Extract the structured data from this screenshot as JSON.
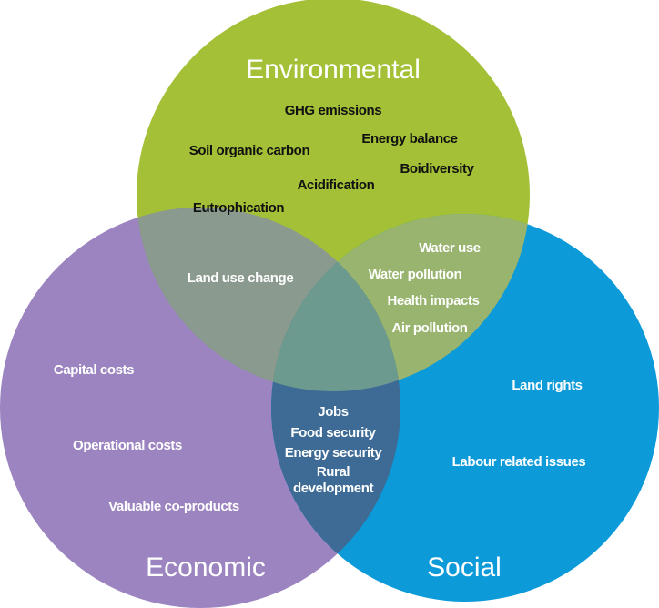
{
  "circles": [
    {
      "title": "Environmental"
    },
    {
      "title": "Economic"
    },
    {
      "title": "Social"
    }
  ],
  "regions": {
    "environmental": [
      "GHG emissions",
      "Energy balance",
      "Soil organic carbon",
      "Boidiversity",
      "Acidification",
      "Eutrophication"
    ],
    "environmental_economic": [
      "Land use change"
    ],
    "environmental_social": [
      "Water use",
      "Water pollution",
      "Health impacts",
      "Air pollution"
    ],
    "economic": [
      "Capital costs",
      "Operational costs",
      "Valuable co-products"
    ],
    "social": [
      "Land rights",
      "Labour related issues"
    ],
    "all": [
      "Jobs",
      "Food security",
      "Energy security",
      "Rural development"
    ]
  }
}
